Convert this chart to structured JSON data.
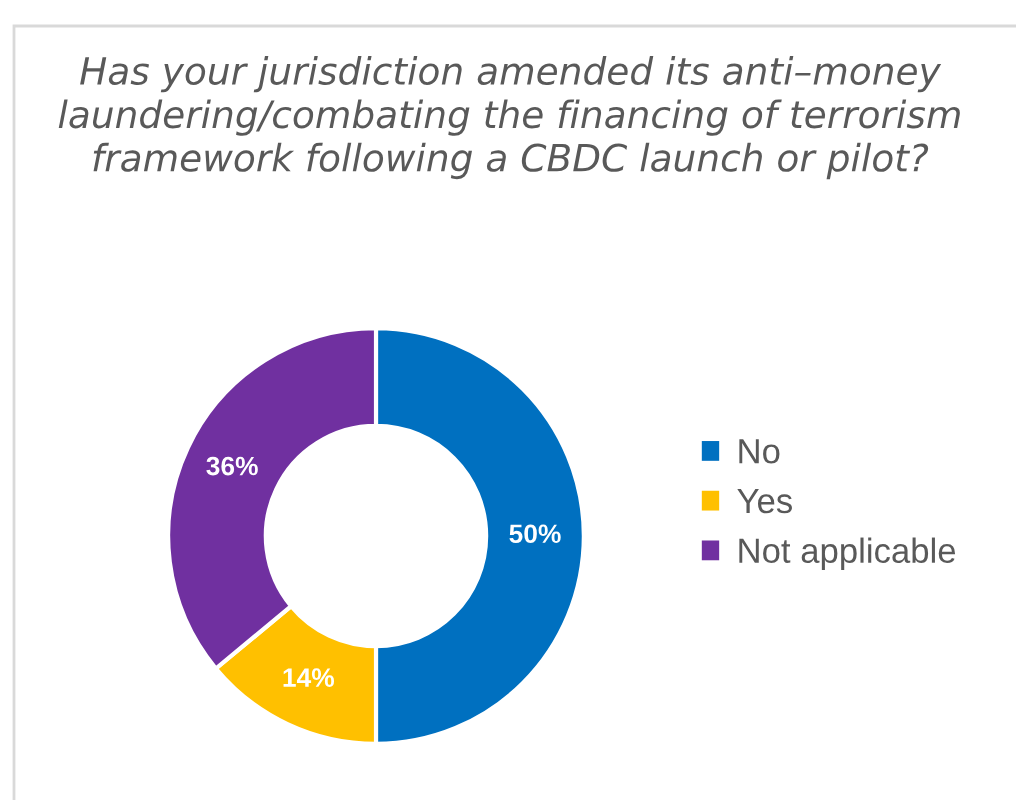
{
  "chart_data": {
    "type": "donut",
    "title": "Has your jurisdiction amended its anti–money laundering/combating the financing of terrorism framework following a CBDC launch or pilot?",
    "categories": [
      "No",
      "Yes",
      "Not applicable"
    ],
    "values": [
      50,
      14,
      36
    ],
    "colors": [
      "#0070c0",
      "#ffc000",
      "#7030a0"
    ],
    "value_labels": [
      "50%",
      "14%",
      "36%"
    ],
    "legend": "right"
  }
}
